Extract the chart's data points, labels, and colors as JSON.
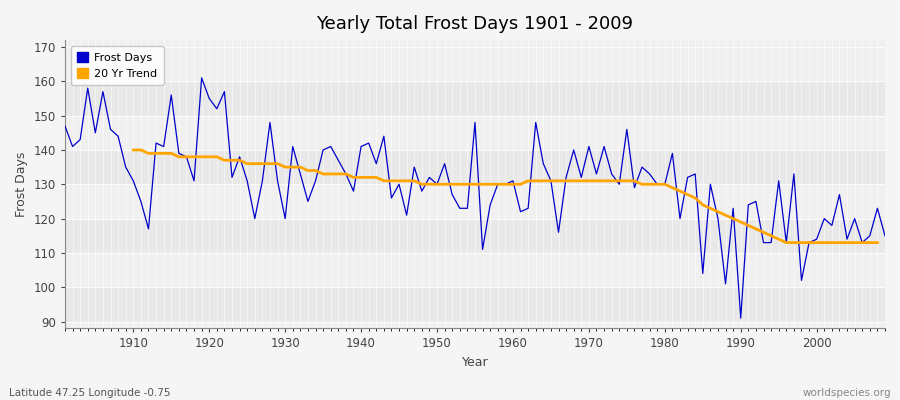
{
  "title": "Yearly Total Frost Days 1901 - 2009",
  "xlabel": "Year",
  "ylabel": "Frost Days",
  "footnote_left": "Latitude 47.25 Longitude -0.75",
  "footnote_right": "worldspecies.org",
  "ylim": [
    88,
    172
  ],
  "yticks": [
    90,
    100,
    110,
    120,
    130,
    140,
    150,
    160,
    170
  ],
  "xlim": [
    1901,
    2009
  ],
  "line_color": "#0000cc",
  "trend_color": "#FFA500",
  "bg_color": "#f5f5f5",
  "plot_bg": "#f0f0f0",
  "band_color": "#e8e8e8",
  "grid_color": "#d8d8d8",
  "years": [
    1901,
    1902,
    1903,
    1904,
    1905,
    1906,
    1907,
    1908,
    1909,
    1910,
    1911,
    1912,
    1913,
    1914,
    1915,
    1916,
    1917,
    1918,
    1919,
    1920,
    1921,
    1922,
    1923,
    1924,
    1925,
    1926,
    1927,
    1928,
    1929,
    1930,
    1931,
    1932,
    1933,
    1934,
    1935,
    1936,
    1937,
    1938,
    1939,
    1940,
    1941,
    1942,
    1943,
    1944,
    1945,
    1946,
    1947,
    1948,
    1949,
    1950,
    1951,
    1952,
    1953,
    1954,
    1955,
    1956,
    1957,
    1958,
    1959,
    1960,
    1961,
    1962,
    1963,
    1964,
    1965,
    1966,
    1967,
    1968,
    1969,
    1970,
    1971,
    1972,
    1973,
    1974,
    1975,
    1976,
    1977,
    1978,
    1979,
    1980,
    1981,
    1982,
    1983,
    1984,
    1985,
    1986,
    1987,
    1988,
    1989,
    1990,
    1991,
    1992,
    1993,
    1994,
    1995,
    1996,
    1997,
    1998,
    1999,
    2000,
    2001,
    2002,
    2003,
    2004,
    2005,
    2006,
    2007,
    2008,
    2009
  ],
  "frost_days": [
    147,
    141,
    143,
    158,
    145,
    157,
    146,
    144,
    135,
    131,
    125,
    117,
    142,
    141,
    156,
    139,
    138,
    131,
    161,
    155,
    152,
    157,
    132,
    138,
    131,
    120,
    131,
    148,
    131,
    120,
    141,
    133,
    125,
    131,
    140,
    141,
    137,
    133,
    128,
    141,
    142,
    136,
    144,
    126,
    130,
    121,
    135,
    128,
    132,
    130,
    136,
    127,
    123,
    123,
    148,
    111,
    124,
    130,
    130,
    131,
    122,
    123,
    148,
    136,
    131,
    116,
    132,
    140,
    132,
    141,
    133,
    141,
    133,
    130,
    146,
    129,
    135,
    133,
    130,
    130,
    139,
    120,
    132,
    133,
    104,
    130,
    120,
    101,
    123,
    91,
    124,
    125,
    113,
    113,
    131,
    113,
    133,
    102,
    113,
    114,
    120,
    118,
    127,
    114,
    120,
    113,
    115,
    123,
    115
  ],
  "trend_years": [
    1910,
    1911,
    1912,
    1913,
    1914,
    1915,
    1916,
    1917,
    1918,
    1919,
    1920,
    1921,
    1922,
    1923,
    1924,
    1925,
    1926,
    1927,
    1928,
    1929,
    1930,
    1931,
    1932,
    1933,
    1934,
    1935,
    1936,
    1937,
    1938,
    1939,
    1940,
    1941,
    1942,
    1943,
    1944,
    1945,
    1946,
    1947,
    1948,
    1949,
    1950,
    1951,
    1952,
    1953,
    1954,
    1955,
    1956,
    1957,
    1958,
    1959,
    1960,
    1961,
    1962,
    1963,
    1964,
    1965,
    1966,
    1967,
    1968,
    1969,
    1970,
    1971,
    1972,
    1973,
    1974,
    1975,
    1976,
    1977,
    1978,
    1979,
    1980,
    1981,
    1982,
    1983,
    1984,
    1985,
    1986,
    1987,
    1988,
    1989,
    1990,
    1991,
    1992,
    1993,
    1994,
    1995,
    1996,
    1997,
    1998,
    1999,
    2000,
    2001,
    2002,
    2003,
    2004,
    2005,
    2006,
    2007,
    2008
  ],
  "trend_vals": [
    140,
    140,
    139,
    139,
    139,
    139,
    138,
    138,
    138,
    138,
    138,
    138,
    137,
    137,
    137,
    136,
    136,
    136,
    136,
    136,
    135,
    135,
    135,
    134,
    134,
    133,
    133,
    133,
    133,
    132,
    132,
    132,
    132,
    131,
    131,
    131,
    131,
    131,
    130,
    130,
    130,
    130,
    130,
    130,
    130,
    130,
    130,
    130,
    130,
    130,
    130,
    130,
    131,
    131,
    131,
    131,
    131,
    131,
    131,
    131,
    131,
    131,
    131,
    131,
    131,
    131,
    131,
    130,
    130,
    130,
    130,
    129,
    128,
    127,
    126,
    124,
    123,
    122,
    121,
    120,
    119,
    118,
    117,
    116,
    115,
    114,
    113,
    113,
    113,
    113,
    113,
    113,
    113,
    113,
    113,
    113,
    113,
    113,
    113
  ]
}
